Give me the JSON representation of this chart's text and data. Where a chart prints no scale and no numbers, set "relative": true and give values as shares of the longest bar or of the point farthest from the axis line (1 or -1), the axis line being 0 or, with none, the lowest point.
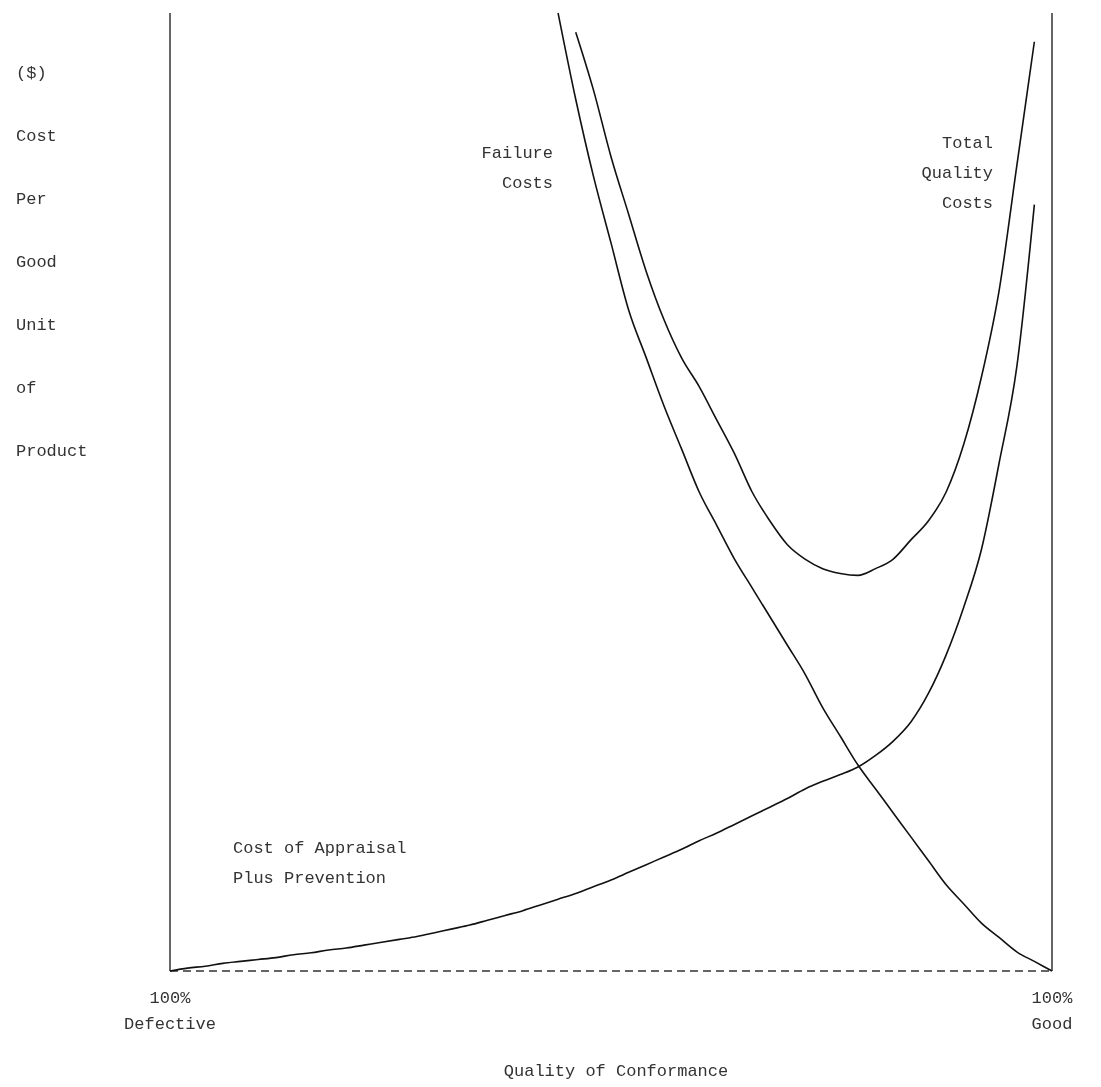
{
  "chart_data": {
    "type": "line",
    "relative": true,
    "xlabel": "Quality of Conformance",
    "ylabel": "($) Cost Per Good Unit of Product",
    "categories": [
      "100% Defective",
      null,
      null,
      null,
      null,
      null,
      null,
      null,
      null,
      null,
      null,
      null,
      null,
      null,
      null,
      null,
      null,
      null,
      null,
      null,
      null,
      null,
      null,
      null,
      null,
      null,
      null,
      null,
      null,
      null,
      null,
      null,
      null,
      null,
      null,
      null,
      null,
      null,
      null,
      null,
      null,
      null,
      null,
      null,
      null,
      null,
      null,
      null,
      null,
      null,
      "100% Good"
    ],
    "line_style": "solid",
    "marker": "none",
    "ref_lines": [
      {
        "axis": "y",
        "value": 0,
        "line_style": "dashed",
        "color": "#333333"
      }
    ],
    "series": [
      {
        "name": "Failure Costs",
        "color": "#111111",
        "values": [
          null,
          null,
          null,
          null,
          null,
          null,
          null,
          null,
          null,
          null,
          null,
          null,
          null,
          null,
          null,
          null,
          null,
          null,
          null,
          null,
          null,
          null,
          1.0,
          0.91,
          0.83,
          0.76,
          0.69,
          0.64,
          0.59,
          0.545,
          0.5,
          0.465,
          0.43,
          0.4,
          0.37,
          0.34,
          0.31,
          0.275,
          0.245,
          0.215,
          0.19,
          0.165,
          0.14,
          0.115,
          0.09,
          0.07,
          0.05,
          0.035,
          0.02,
          0.01,
          0
        ]
      },
      {
        "name": "Total Quality Costs",
        "color": "#111111",
        "values": [
          null,
          null,
          null,
          null,
          null,
          null,
          null,
          null,
          null,
          null,
          null,
          null,
          null,
          null,
          null,
          null,
          null,
          null,
          null,
          null,
          null,
          null,
          null,
          0.98,
          0.92,
          0.85,
          0.79,
          0.73,
          0.68,
          0.64,
          0.61,
          0.575,
          0.54,
          0.5,
          0.47,
          0.445,
          0.43,
          0.42,
          0.415,
          0.413,
          0.42,
          0.43,
          0.45,
          0.47,
          0.5,
          0.55,
          0.62,
          0.71,
          0.84,
          0.97,
          null
        ]
      },
      {
        "name": "Cost of Appraisal Plus Prevention",
        "color": "#111111",
        "values": [
          0,
          0.003,
          0.005,
          0.008,
          0.01,
          0.012,
          0.014,
          0.017,
          0.019,
          0.022,
          0.024,
          0.027,
          0.03,
          0.033,
          0.036,
          0.04,
          0.044,
          0.048,
          0.053,
          0.058,
          0.063,
          0.069,
          0.075,
          0.081,
          0.088,
          0.095,
          0.103,
          0.111,
          0.119,
          0.127,
          0.136,
          0.144,
          0.153,
          0.162,
          0.171,
          0.18,
          0.19,
          0.198,
          0.205,
          0.213,
          0.225,
          0.24,
          0.26,
          0.29,
          0.33,
          0.38,
          0.44,
          0.53,
          0.63,
          0.8,
          null
        ]
      }
    ]
  }
}
